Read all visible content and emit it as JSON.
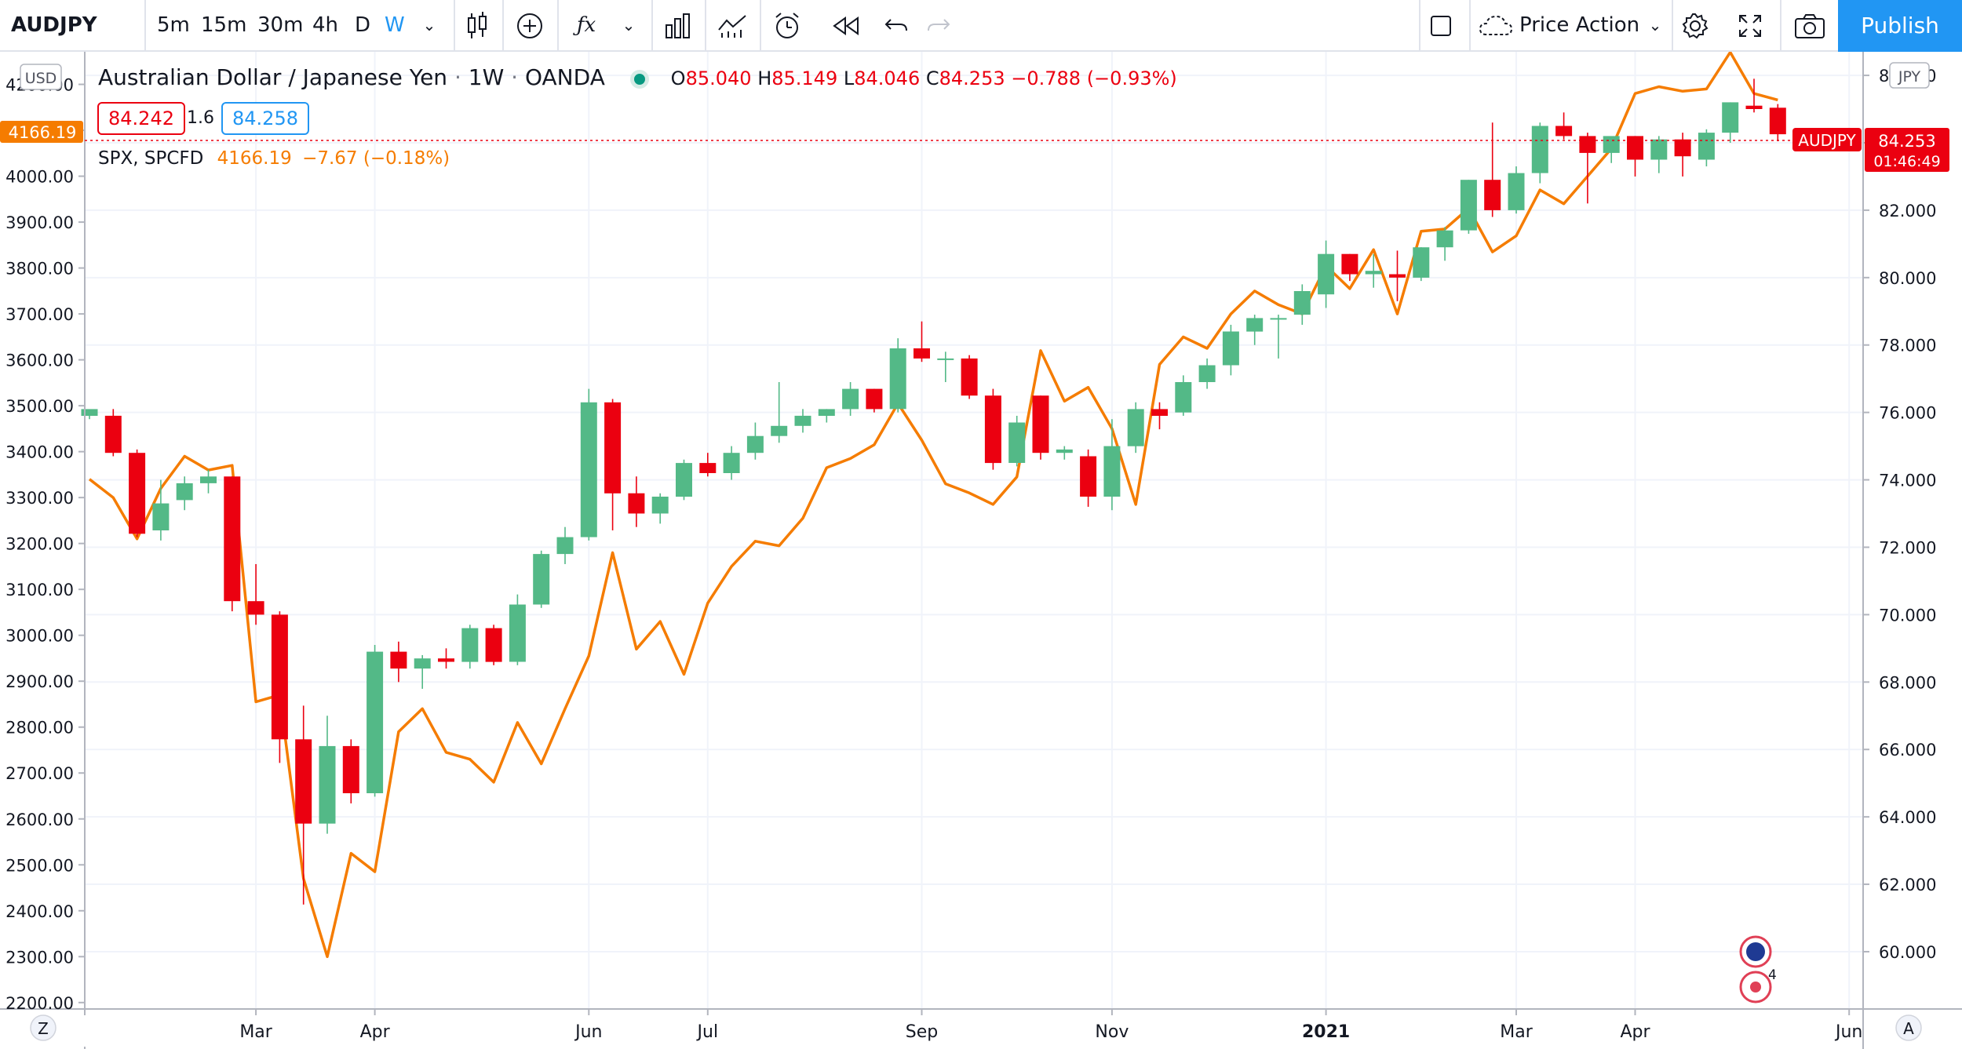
{
  "toolbar": {
    "symbol": "AUDJPY",
    "intervals": [
      "5m",
      "15m",
      "30m",
      "4h",
      "D",
      "W"
    ],
    "active_interval": "W",
    "layout_name": "Price Action",
    "publish_label": "Publish",
    "colors": {
      "accent": "#2196f3"
    }
  },
  "legend": {
    "main_title": "Australian Dollar / Japanese Yen",
    "timeframe": "1W",
    "source": "OANDA",
    "open_label": "O",
    "open": "85.040",
    "high_label": "H",
    "high": "85.149",
    "low_label": "L",
    "low": "84.046",
    "close_label": "C",
    "close": "84.253",
    "change": "−0.788 (−0.93%)",
    "bid": "84.242",
    "spread": "1.6",
    "ask": "84.258",
    "overlay_title": "SPX, SPCFD",
    "overlay_value": "4166.19",
    "overlay_change": "−7.67 (−0.18%)"
  },
  "left_scale": {
    "currency": "USD",
    "current_label": "4166.19"
  },
  "right_scale": {
    "currency": "JPY",
    "symbol_tag": "AUDJPY",
    "current_price": "84.253",
    "countdown": "01:46:49"
  },
  "bottom": {
    "left_button": "Z",
    "right_button": "A"
  },
  "badges": {
    "news_count": "4"
  },
  "chart_data": {
    "type": "candlestick",
    "title": "Australian Dollar / Japanese Yen · 1W · OANDA",
    "colors": {
      "up": "#53b987",
      "down": "#eb0010",
      "overlay": "#f57c00"
    },
    "x_ticks": [
      {
        "label": "Mar",
        "i": 7
      },
      {
        "label": "Apr",
        "i": 12
      },
      {
        "label": "Jun",
        "i": 21
      },
      {
        "label": "Jul",
        "i": 26
      },
      {
        "label": "Sep",
        "i": 35
      },
      {
        "label": "Nov",
        "i": 43
      },
      {
        "label": "2021",
        "i": 52,
        "bold": true
      },
      {
        "label": "Mar",
        "i": 60
      },
      {
        "label": "Apr",
        "i": 65
      },
      {
        "label": "Jun",
        "i": 74
      }
    ],
    "right_axis": {
      "label": "JPY",
      "ylim": [
        58.3,
        86.7
      ],
      "ticks": [
        "60.000",
        "62.000",
        "64.000",
        "66.000",
        "68.000",
        "70.000",
        "72.000",
        "74.000",
        "76.000",
        "78.000",
        "80.000",
        "82.000",
        "84.000",
        "86.000"
      ]
    },
    "left_axis": {
      "label": "USD",
      "ylim": [
        2186,
        4271
      ],
      "ticks": [
        "2200.00",
        "2300.00",
        "2400.00",
        "2500.00",
        "2600.00",
        "2700.00",
        "2800.00",
        "2900.00",
        "3000.00",
        "3100.00",
        "3200.00",
        "3300.00",
        "3400.00",
        "3500.00",
        "3600.00",
        "3700.00",
        "3800.00",
        "3900.00",
        "4000.00",
        "4100.00",
        "4200.00"
      ]
    },
    "candles": [
      {
        "o": 75.9,
        "h": 76.0,
        "l": 75.8,
        "c": 76.1
      },
      {
        "o": 75.9,
        "h": 76.1,
        "l": 74.7,
        "c": 74.8
      },
      {
        "o": 74.8,
        "h": 74.9,
        "l": 72.3,
        "c": 72.4
      },
      {
        "o": 72.5,
        "h": 74.0,
        "l": 72.2,
        "c": 73.3
      },
      {
        "o": 73.4,
        "h": 74.1,
        "l": 73.1,
        "c": 73.9
      },
      {
        "o": 73.9,
        "h": 74.3,
        "l": 73.6,
        "c": 74.1
      },
      {
        "o": 74.1,
        "h": 74.1,
        "l": 70.1,
        "c": 70.4
      },
      {
        "o": 70.4,
        "h": 71.5,
        "l": 69.7,
        "c": 70.0
      },
      {
        "o": 70.0,
        "h": 70.1,
        "l": 65.6,
        "c": 66.3
      },
      {
        "o": 66.3,
        "h": 67.3,
        "l": 61.4,
        "c": 63.8
      },
      {
        "o": 63.8,
        "h": 67.0,
        "l": 63.5,
        "c": 66.1
      },
      {
        "o": 66.1,
        "h": 66.3,
        "l": 64.4,
        "c": 64.7
      },
      {
        "o": 64.7,
        "h": 69.1,
        "l": 64.6,
        "c": 68.9
      },
      {
        "o": 68.9,
        "h": 69.2,
        "l": 68.0,
        "c": 68.4
      },
      {
        "o": 68.4,
        "h": 68.8,
        "l": 67.8,
        "c": 68.7
      },
      {
        "o": 68.7,
        "h": 69.0,
        "l": 68.4,
        "c": 68.6
      },
      {
        "o": 68.6,
        "h": 69.7,
        "l": 68.4,
        "c": 69.6
      },
      {
        "o": 69.6,
        "h": 69.7,
        "l": 68.5,
        "c": 68.6
      },
      {
        "o": 68.6,
        "h": 70.6,
        "l": 68.5,
        "c": 70.3
      },
      {
        "o": 70.3,
        "h": 71.9,
        "l": 70.2,
        "c": 71.8
      },
      {
        "o": 71.8,
        "h": 72.6,
        "l": 71.5,
        "c": 72.3
      },
      {
        "o": 72.3,
        "h": 76.7,
        "l": 72.2,
        "c": 76.3
      },
      {
        "o": 76.3,
        "h": 76.4,
        "l": 72.5,
        "c": 73.6
      },
      {
        "o": 73.6,
        "h": 74.1,
        "l": 72.6,
        "c": 73.0
      },
      {
        "o": 73.0,
        "h": 73.6,
        "l": 72.7,
        "c": 73.5
      },
      {
        "o": 73.5,
        "h": 74.6,
        "l": 73.4,
        "c": 74.5
      },
      {
        "o": 74.5,
        "h": 74.8,
        "l": 74.1,
        "c": 74.2
      },
      {
        "o": 74.2,
        "h": 75.0,
        "l": 74.0,
        "c": 74.8
      },
      {
        "o": 74.8,
        "h": 75.7,
        "l": 74.6,
        "c": 75.3
      },
      {
        "o": 75.3,
        "h": 76.9,
        "l": 75.1,
        "c": 75.6
      },
      {
        "o": 75.6,
        "h": 76.1,
        "l": 75.4,
        "c": 75.9
      },
      {
        "o": 75.9,
        "h": 76.1,
        "l": 75.7,
        "c": 76.1
      },
      {
        "o": 76.1,
        "h": 76.9,
        "l": 75.9,
        "c": 76.7
      },
      {
        "o": 76.7,
        "h": 76.7,
        "l": 76.0,
        "c": 76.1
      },
      {
        "o": 76.1,
        "h": 78.2,
        "l": 76.0,
        "c": 77.9
      },
      {
        "o": 77.9,
        "h": 78.7,
        "l": 77.5,
        "c": 77.6
      },
      {
        "o": 77.6,
        "h": 77.8,
        "l": 76.9,
        "c": 77.6
      },
      {
        "o": 77.6,
        "h": 77.7,
        "l": 76.4,
        "c": 76.5
      },
      {
        "o": 76.5,
        "h": 76.7,
        "l": 74.3,
        "c": 74.5
      },
      {
        "o": 74.5,
        "h": 75.9,
        "l": 74.4,
        "c": 75.7
      },
      {
        "o": 76.5,
        "h": 76.5,
        "l": 74.6,
        "c": 74.8
      },
      {
        "o": 74.8,
        "h": 75.0,
        "l": 74.6,
        "c": 74.9
      },
      {
        "o": 74.7,
        "h": 74.9,
        "l": 73.2,
        "c": 73.5
      },
      {
        "o": 73.5,
        "h": 75.8,
        "l": 73.1,
        "c": 75.0
      },
      {
        "o": 75.0,
        "h": 76.3,
        "l": 74.8,
        "c": 76.1
      },
      {
        "o": 76.1,
        "h": 76.3,
        "l": 75.5,
        "c": 75.9
      },
      {
        "o": 76.0,
        "h": 77.1,
        "l": 75.9,
        "c": 76.9
      },
      {
        "o": 76.9,
        "h": 77.6,
        "l": 76.7,
        "c": 77.4
      },
      {
        "o": 77.4,
        "h": 78.6,
        "l": 77.1,
        "c": 78.4
      },
      {
        "o": 78.4,
        "h": 78.9,
        "l": 78.0,
        "c": 78.8
      },
      {
        "o": 78.8,
        "h": 78.9,
        "l": 77.6,
        "c": 78.8
      },
      {
        "o": 78.9,
        "h": 79.8,
        "l": 78.6,
        "c": 79.6
      },
      {
        "o": 79.5,
        "h": 81.1,
        "l": 79.1,
        "c": 80.7
      },
      {
        "o": 80.7,
        "h": 80.7,
        "l": 79.9,
        "c": 80.1
      },
      {
        "o": 80.1,
        "h": 80.7,
        "l": 79.7,
        "c": 80.2
      },
      {
        "o": 80.1,
        "h": 80.8,
        "l": 79.3,
        "c": 80.0
      },
      {
        "o": 80.0,
        "h": 80.9,
        "l": 79.9,
        "c": 80.9
      },
      {
        "o": 80.9,
        "h": 81.5,
        "l": 80.5,
        "c": 81.4
      },
      {
        "o": 81.4,
        "h": 82.9,
        "l": 81.3,
        "c": 82.9
      },
      {
        "o": 82.9,
        "h": 84.6,
        "l": 81.8,
        "c": 82.0
      },
      {
        "o": 82.0,
        "h": 83.3,
        "l": 81.9,
        "c": 83.1
      },
      {
        "o": 83.1,
        "h": 84.6,
        "l": 82.8,
        "c": 84.5
      },
      {
        "o": 84.5,
        "h": 84.9,
        "l": 84.1,
        "c": 84.2
      },
      {
        "o": 84.2,
        "h": 84.3,
        "l": 82.2,
        "c": 83.7
      },
      {
        "o": 83.7,
        "h": 84.1,
        "l": 83.4,
        "c": 84.2
      },
      {
        "o": 84.2,
        "h": 84.2,
        "l": 83.0,
        "c": 83.5
      },
      {
        "o": 83.5,
        "h": 84.2,
        "l": 83.1,
        "c": 84.1
      },
      {
        "o": 84.1,
        "h": 84.3,
        "l": 83.0,
        "c": 83.6
      },
      {
        "o": 83.5,
        "h": 84.4,
        "l": 83.3,
        "c": 84.3
      },
      {
        "o": 84.3,
        "h": 85.2,
        "l": 84.0,
        "c": 85.2
      },
      {
        "o": 85.1,
        "h": 85.9,
        "l": 84.9,
        "c": 85.0
      },
      {
        "o": 85.04,
        "h": 85.149,
        "l": 84.046,
        "c": 84.253
      }
    ],
    "overlay": {
      "name": "SPX, SPCFD",
      "axis": "left",
      "values": [
        3340,
        3300,
        3210,
        3320,
        3390,
        3360,
        3370,
        2855,
        2870,
        2470,
        2300,
        2525,
        2485,
        2790,
        2840,
        2745,
        2730,
        2680,
        2810,
        2720,
        2840,
        2955,
        3180,
        2970,
        3030,
        2915,
        3070,
        3150,
        3205,
        3195,
        3255,
        3365,
        3385,
        3415,
        3505,
        3425,
        3330,
        3310,
        3285,
        3345,
        3620,
        3510,
        3540,
        3450,
        3285,
        3590,
        3650,
        3625,
        3700,
        3750,
        3720,
        3700,
        3805,
        3755,
        3840,
        3700,
        3880,
        3885,
        3930,
        3835,
        3870,
        3970,
        3940,
        4000,
        4060,
        4180,
        4195,
        4185,
        4190,
        4270,
        4180,
        4166
      ]
    }
  }
}
